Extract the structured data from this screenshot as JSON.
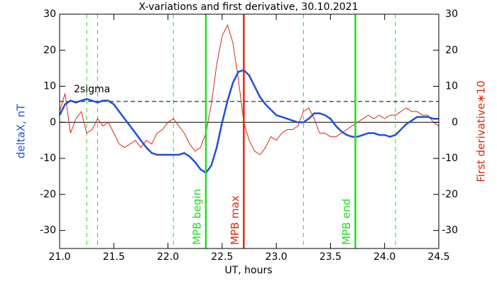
{
  "chart_data": {
    "type": "line",
    "title": "X-variations and first derivative, 30.10.2021",
    "x_label": "UT, hours",
    "y_label": "deltaX, nT",
    "y2_label": "First derivative∗10",
    "xlim": [
      21.0,
      24.5
    ],
    "xticks": [
      {
        "value": 21,
        "label": "21.0"
      },
      {
        "value": 21.5,
        "label": "21.5"
      },
      {
        "value": 22,
        "label": "22.0"
      },
      {
        "value": 22.5,
        "label": "22.5"
      },
      {
        "value": 23,
        "label": "23.0"
      },
      {
        "value": 23.5,
        "label": "23.5"
      },
      {
        "value": 24,
        "label": "24.0"
      },
      {
        "value": 24.5,
        "label": "24.5"
      }
    ],
    "ylim": [
      -35,
      30
    ],
    "yticks": [
      -30,
      -20,
      -10,
      0,
      10,
      20,
      30
    ],
    "y2lim": [
      -35,
      30
    ],
    "y2ticks": [
      -30,
      -20,
      -10,
      0,
      10,
      20,
      30
    ],
    "x": [
      21.0,
      21.05,
      21.1,
      21.15,
      21.2,
      21.25,
      21.3,
      21.35,
      21.4,
      21.45,
      21.5,
      21.55,
      21.6,
      21.65,
      21.7,
      21.75,
      21.8,
      21.85,
      21.9,
      21.95,
      22.0,
      22.05,
      22.1,
      22.15,
      22.2,
      22.25,
      22.3,
      22.35,
      22.4,
      22.45,
      22.5,
      22.55,
      22.6,
      22.65,
      22.7,
      22.75,
      22.8,
      22.85,
      22.9,
      22.95,
      23.0,
      23.05,
      23.1,
      23.15,
      23.2,
      23.25,
      23.3,
      23.35,
      23.4,
      23.45,
      23.5,
      23.55,
      23.6,
      23.65,
      23.7,
      23.75,
      23.8,
      23.85,
      23.9,
      23.95,
      24.0,
      24.05,
      24.1,
      24.15,
      24.2,
      24.25,
      24.3,
      24.35,
      24.4,
      24.45,
      24.5
    ],
    "series": [
      {
        "name": "deltaX",
        "color": "#1f50d8",
        "width": 2.5,
        "values": [
          2,
          5,
          6,
          5.5,
          6,
          6.5,
          6,
          5.5,
          6,
          6,
          5,
          3,
          1,
          -1,
          -3,
          -5,
          -7,
          -8.5,
          -9,
          -9,
          -9,
          -9,
          -9,
          -8.5,
          -9.5,
          -11,
          -13,
          -14,
          -12,
          -7,
          0,
          6,
          11,
          14,
          14.5,
          13,
          10,
          7,
          5,
          3.5,
          2,
          1.5,
          1,
          0.5,
          0,
          0,
          1,
          2.5,
          2.5,
          2,
          1,
          -1,
          -2.5,
          -3.5,
          -4,
          -4,
          -3.5,
          -3,
          -3,
          -3.5,
          -3.5,
          -4,
          -3.5,
          -2,
          -0.5,
          0.5,
          1.5,
          1.5,
          1.5,
          1,
          1
        ]
      },
      {
        "name": "derivative",
        "color": "#d22a10",
        "width": 1,
        "axis": "y2",
        "values": [
          3,
          8,
          -3,
          1,
          3,
          -3,
          -2,
          1,
          -1,
          0,
          -3,
          -6,
          -7,
          -6,
          -5,
          -7,
          -5,
          -6,
          -3,
          -2,
          0,
          1,
          -1,
          -3,
          -6,
          -8,
          -7,
          -3,
          5,
          16,
          24,
          27,
          22,
          12,
          0,
          -5,
          -8,
          -9,
          -7,
          -4,
          -5,
          -3,
          -2,
          -2,
          -1,
          3,
          4,
          1,
          -3,
          -3,
          -4,
          -4,
          -3,
          -2,
          -1,
          0,
          1,
          2,
          1,
          2,
          1,
          2,
          2,
          3,
          4,
          3,
          3,
          2,
          2,
          0,
          -1
        ]
      }
    ],
    "vlines": [
      {
        "x": 22.35,
        "label": "MPB begin",
        "color": "#22dd22"
      },
      {
        "x": 22.7,
        "label": "MPB max",
        "color": "#dd2a10"
      },
      {
        "x": 23.73,
        "label": "MPB end",
        "color": "#22dd22"
      }
    ],
    "dashed_vlines": {
      "color": "#22dd22",
      "x": [
        21.25,
        21.35,
        22.05,
        23.25,
        24.1
      ]
    },
    "threshold": {
      "y": 5.8,
      "label": "2sigma"
    },
    "zero_line": 0
  }
}
